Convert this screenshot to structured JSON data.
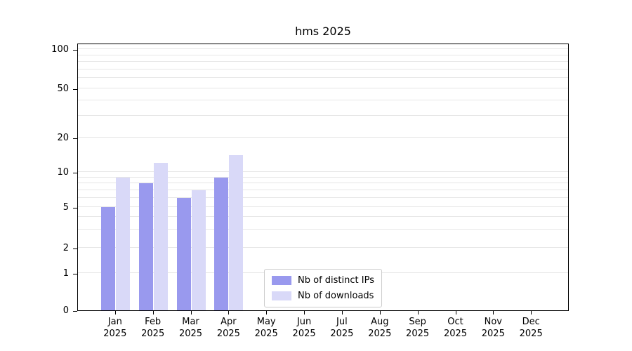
{
  "chart_data": {
    "type": "bar",
    "title": "hms 2025",
    "categories": [
      "Jan",
      "Feb",
      "Mar",
      "Apr",
      "May",
      "Jun",
      "Jul",
      "Aug",
      "Sep",
      "Oct",
      "Nov",
      "Dec"
    ],
    "category_year": "2025",
    "series": [
      {
        "name": "Nb of distinct IPs",
        "color": "#9999ee",
        "values": [
          5,
          8,
          6,
          9,
          0,
          0,
          0,
          0,
          0,
          0,
          0,
          0
        ]
      },
      {
        "name": "Nb of downloads",
        "color": "#d9d9f8",
        "values": [
          9,
          12,
          7,
          14,
          0,
          0,
          0,
          0,
          0,
          0,
          0,
          0
        ]
      }
    ],
    "yaxis": {
      "scale": "symlog",
      "ylim": [
        0,
        100
      ],
      "ticks": [
        0,
        1,
        2,
        5,
        10,
        20,
        50,
        100
      ],
      "gridline_values": [
        1,
        2,
        3,
        4,
        5,
        6,
        7,
        8,
        9,
        10,
        20,
        30,
        40,
        50,
        60,
        70,
        80,
        90,
        100
      ]
    },
    "grid": true,
    "legend_position": "lower-center-inside"
  }
}
